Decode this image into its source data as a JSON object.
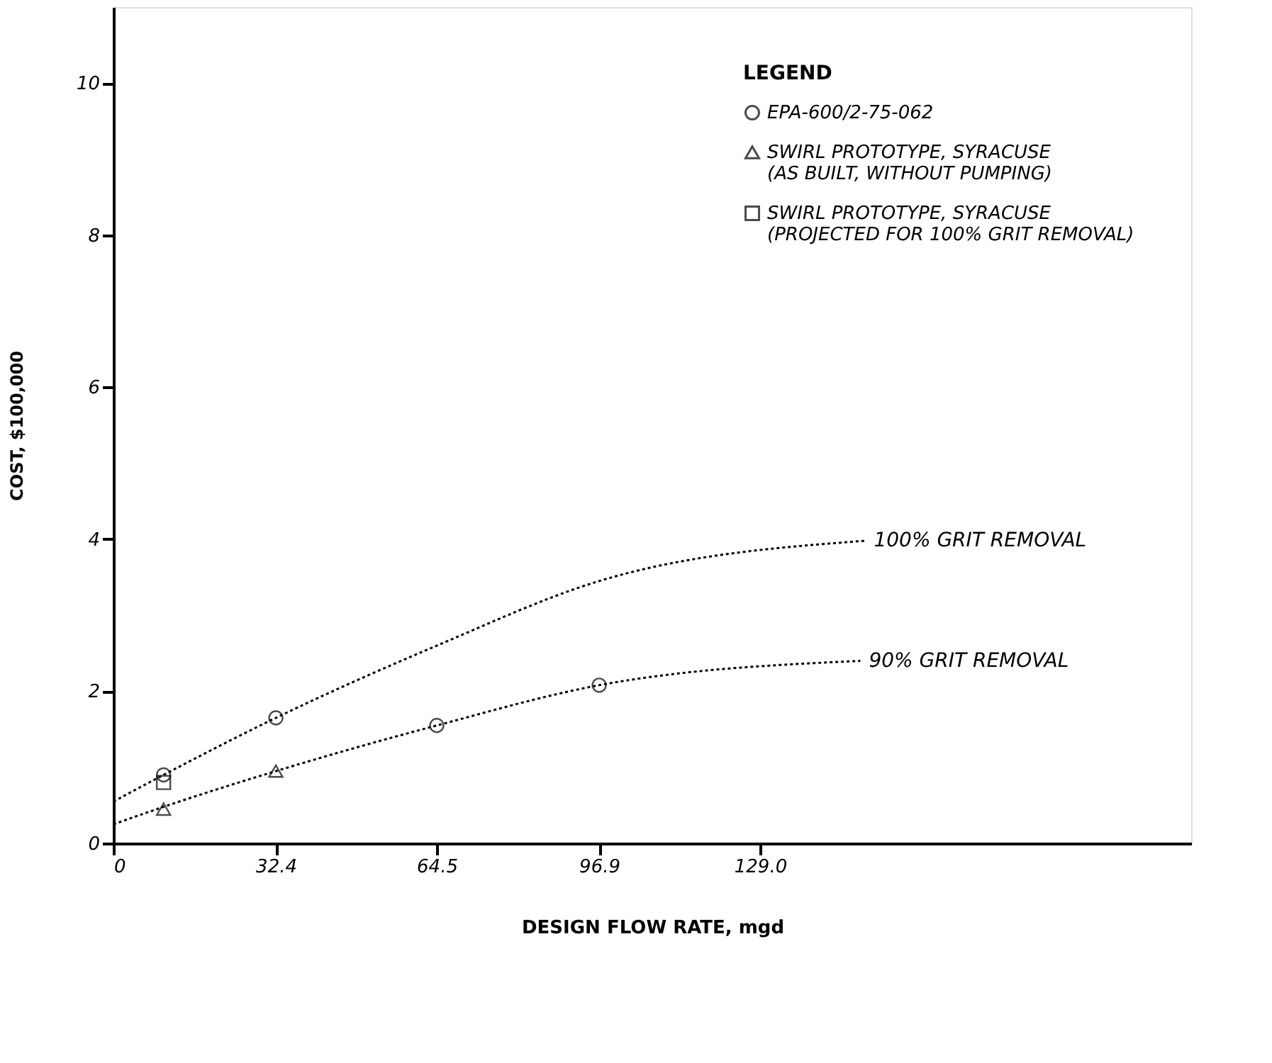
{
  "chart_data": {
    "type": "line",
    "xlabel": "DESIGN FLOW RATE, mgd",
    "ylabel": "COST, $100,000",
    "legend_title": "LEGEND",
    "legend": "top right",
    "grid": false,
    "xlim": [
      0,
      215
    ],
    "ylim": [
      0,
      11
    ],
    "xticks": [
      0,
      32.4,
      64.5,
      96.9,
      {
        "value": 129,
        "label": "129.0"
      }
    ],
    "yticks": [
      0,
      2,
      4,
      6,
      8,
      10
    ],
    "series": [
      {
        "name": "100% GRIT REMOVAL",
        "color": "#000000",
        "line_style": "dotted",
        "marker": "none",
        "x": [
          0,
          10,
          32.4,
          64.5,
          96.9,
          150
        ],
        "values": [
          0.55,
          0.9,
          1.65,
          2.6,
          3.45,
          3.98
        ]
      },
      {
        "name": "90% GRIT REMOVAL",
        "color": "#000000",
        "line_style": "dotted",
        "marker": "none",
        "x": [
          0,
          10,
          32.4,
          64.5,
          96.9,
          149
        ],
        "values": [
          0.25,
          0.48,
          0.95,
          1.55,
          2.08,
          2.4
        ]
      },
      {
        "name": "EPA-600/2-75-062",
        "type": "scatter",
        "color": "#000000",
        "marker": "circle",
        "x": [
          10,
          32.4,
          64.5,
          96.9
        ],
        "values": [
          0.9,
          1.65,
          1.55,
          2.08
        ]
      },
      {
        "name": "SWIRL PROTOTYPE, SYRACUSE\n(AS BUILT, WITHOUT PUMPING)",
        "type": "scatter",
        "color": "#000000",
        "marker": "triangle",
        "x": [
          10,
          32.4
        ],
        "values": [
          0.45,
          0.95
        ]
      },
      {
        "name": "SWIRL PROTOTYPE, SYRACUSE\n(PROJECTED FOR 100% GRIT REMOVAL)",
        "type": "scatter",
        "color": "#000000",
        "marker": "square",
        "x": [
          10
        ],
        "values": [
          0.8
        ]
      }
    ]
  }
}
